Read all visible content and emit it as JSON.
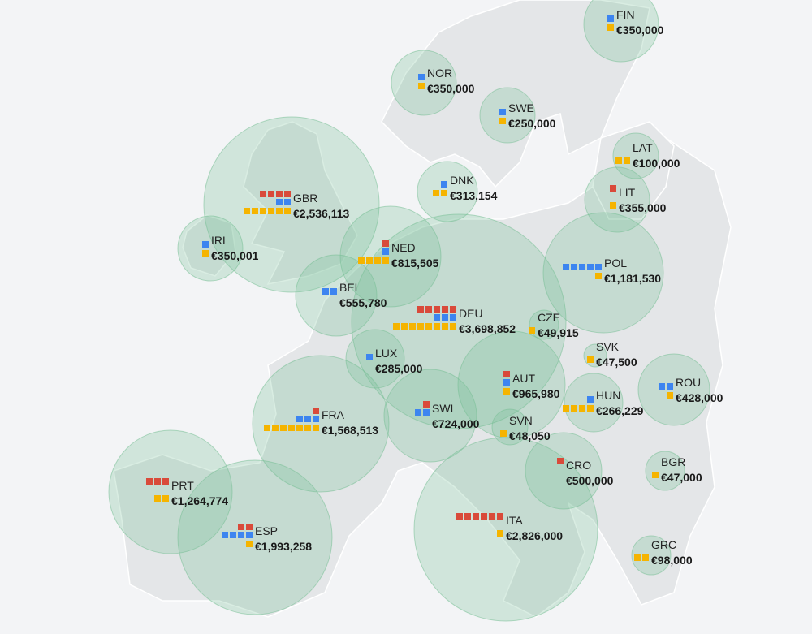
{
  "colors": {
    "red": "#d94a3a",
    "blue": "#3d85f0",
    "yellow": "#f5b400",
    "bubble": "#78c096"
  },
  "countries": [
    {
      "code": "FIN",
      "amount": "€350,000",
      "red": 0,
      "blue": 1,
      "yellow": 1
    },
    {
      "code": "NOR",
      "amount": "€350,000",
      "red": 0,
      "blue": 1,
      "yellow": 1
    },
    {
      "code": "SWE",
      "amount": "€250,000",
      "red": 0,
      "blue": 1,
      "yellow": 1
    },
    {
      "code": "LAT",
      "amount": "€100,000",
      "red": 0,
      "blue": 0,
      "yellow": 2
    },
    {
      "code": "DNK",
      "amount": "€313,154",
      "red": 0,
      "blue": 1,
      "yellow": 2
    },
    {
      "code": "LIT",
      "amount": "€355,000",
      "red": 1,
      "blue": 0,
      "yellow": 1
    },
    {
      "code": "GBR",
      "amount": "€2,536,113",
      "red": 4,
      "blue": 2,
      "yellow": 6
    },
    {
      "code": "IRL",
      "amount": "€350,001",
      "red": 0,
      "blue": 1,
      "yellow": 1
    },
    {
      "code": "NED",
      "amount": "€815,505",
      "red": 1,
      "blue": 1,
      "yellow": 4
    },
    {
      "code": "POL",
      "amount": "€1,181,530",
      "red": 0,
      "blue": 5,
      "yellow": 1
    },
    {
      "code": "BEL",
      "amount": "€555,780",
      "red": 0,
      "blue": 2,
      "yellow": 0
    },
    {
      "code": "DEU",
      "amount": "€3,698,852",
      "red": 5,
      "blue": 3,
      "yellow": 8
    },
    {
      "code": "CZE",
      "amount": "€49,915",
      "red": 0,
      "blue": 0,
      "yellow": 1
    },
    {
      "code": "SVK",
      "amount": "€47,500",
      "red": 0,
      "blue": 0,
      "yellow": 1
    },
    {
      "code": "LUX",
      "amount": "€285,000",
      "red": 0,
      "blue": 1,
      "yellow": 0
    },
    {
      "code": "AUT",
      "amount": "€965,980",
      "red": 1,
      "blue": 1,
      "yellow": 1
    },
    {
      "code": "ROU",
      "amount": "€428,000",
      "red": 0,
      "blue": 2,
      "yellow": 1
    },
    {
      "code": "HUN",
      "amount": "€266,229",
      "red": 0,
      "blue": 1,
      "yellow": 4
    },
    {
      "code": "FRA",
      "amount": "€1,568,513",
      "red": 1,
      "blue": 3,
      "yellow": 7
    },
    {
      "code": "SWI",
      "amount": "€724,000",
      "red": 1,
      "blue": 2,
      "yellow": 0
    },
    {
      "code": "SVN",
      "amount": "€48,050",
      "red": 0,
      "blue": 0,
      "yellow": 1
    },
    {
      "code": "CRO",
      "amount": "€500,000",
      "red": 1,
      "blue": 0,
      "yellow": 0
    },
    {
      "code": "BGR",
      "amount": "€47,000",
      "red": 0,
      "blue": 0,
      "yellow": 1
    },
    {
      "code": "PRT",
      "amount": "€1,264,774",
      "red": 3,
      "blue": 0,
      "yellow": 2
    },
    {
      "code": "ITA",
      "amount": "€2,826,000",
      "red": 6,
      "blue": 0,
      "yellow": 1
    },
    {
      "code": "ESP",
      "amount": "€1,993,258",
      "red": 2,
      "blue": 4,
      "yellow": 1
    },
    {
      "code": "GRC",
      "amount": "€98,000",
      "red": 0,
      "blue": 0,
      "yellow": 2
    }
  ]
}
